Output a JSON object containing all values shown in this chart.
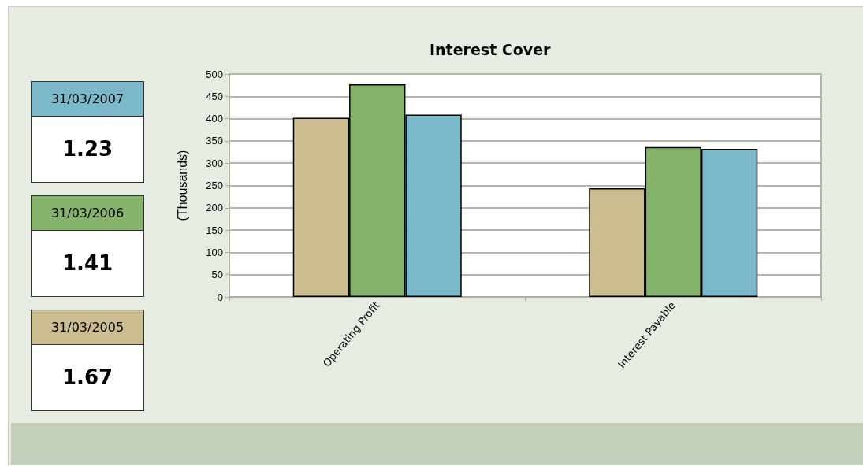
{
  "chart_data": {
    "type": "bar",
    "title": "Interest Cover",
    "ylabel": "(Thousands)",
    "categories": [
      "Operating Profit",
      "Interest Payable"
    ],
    "series": [
      {
        "name": "31/03/2005",
        "color": "#cbbd8f",
        "values": [
          402,
          244
        ]
      },
      {
        "name": "31/03/2006",
        "color": "#86b36b",
        "values": [
          477,
          336
        ]
      },
      {
        "name": "31/03/2007",
        "color": "#7bb8cc",
        "values": [
          409,
          332
        ]
      }
    ],
    "annotations": [
      "1.23",
      "1.41",
      "1.67"
    ],
    "ylim": [
      0,
      500
    ],
    "yticks": [
      0,
      50,
      100,
      150,
      200,
      250,
      300,
      350,
      400,
      450,
      500
    ],
    "grid": "y",
    "legend": "left"
  }
}
